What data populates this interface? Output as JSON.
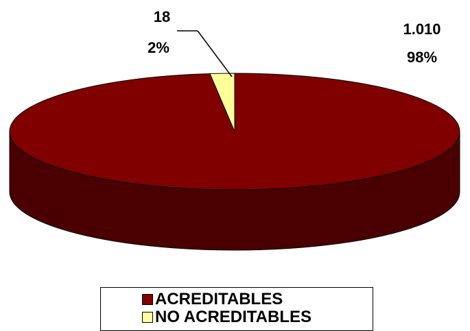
{
  "chart_data": {
    "type": "pie",
    "title": "",
    "slices": [
      {
        "label": "ACREDITABLES",
        "value": 1010,
        "value_label": "1.010",
        "percent_label": "98%",
        "color": "#800000",
        "side_color": "#4a0000"
      },
      {
        "label": "NO ACREDITABLES",
        "value": 18,
        "value_label": "18",
        "percent_label": "2%",
        "color": "#ffff99",
        "side_color": "#c8c878"
      }
    ],
    "three_d": true,
    "legend_position": "bottom"
  }
}
